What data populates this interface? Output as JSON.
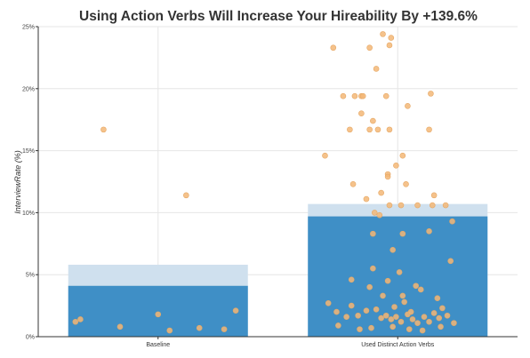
{
  "chart_data": {
    "type": "bar",
    "title": "Using Action Verbs Will Increase Your Hireability By +139.6%",
    "ylabel": "InterviewRate (%)",
    "xlabel": "",
    "ylim": [
      0,
      25
    ],
    "yticks": [
      0,
      5,
      10,
      15,
      20,
      25
    ],
    "ytick_labels": [
      "0%",
      "5%",
      "10%",
      "15%",
      "20%",
      "25%"
    ],
    "grid": true,
    "categories": [
      "Baseline",
      "Used Distinct Action Verbs"
    ],
    "values": [
      4.1,
      9.7
    ],
    "ci_upper": [
      5.8,
      10.7
    ],
    "points": [
      [
        [
          0.17,
          16.7
        ],
        [
          0.67,
          11.4
        ],
        [
          0.0,
          1.2
        ],
        [
          0.03,
          1.4
        ],
        [
          0.27,
          0.8
        ],
        [
          0.5,
          1.8
        ],
        [
          0.57,
          0.5
        ],
        [
          0.75,
          0.7
        ],
        [
          0.9,
          0.6
        ],
        [
          0.97,
          2.1
        ]
      ],
      [
        [
          0.41,
          24.4
        ],
        [
          0.46,
          24.1
        ],
        [
          0.45,
          23.5
        ],
        [
          0.11,
          23.3
        ],
        [
          0.33,
          23.3
        ],
        [
          0.37,
          21.6
        ],
        [
          0.17,
          19.4
        ],
        [
          0.24,
          19.4
        ],
        [
          0.28,
          19.4
        ],
        [
          0.29,
          19.4
        ],
        [
          0.43,
          19.4
        ],
        [
          0.7,
          19.6
        ],
        [
          0.56,
          18.6
        ],
        [
          0.28,
          18.0
        ],
        [
          0.35,
          17.4
        ],
        [
          0.21,
          16.7
        ],
        [
          0.33,
          16.7
        ],
        [
          0.38,
          16.7
        ],
        [
          0.45,
          16.7
        ],
        [
          0.69,
          16.7
        ],
        [
          0.06,
          14.6
        ],
        [
          0.53,
          14.6
        ],
        [
          0.49,
          13.8
        ],
        [
          0.44,
          13.1
        ],
        [
          0.44,
          12.9
        ],
        [
          0.23,
          12.3
        ],
        [
          0.55,
          12.3
        ],
        [
          0.4,
          11.6
        ],
        [
          0.31,
          11.1
        ],
        [
          0.72,
          11.4
        ],
        [
          0.45,
          10.6
        ],
        [
          0.36,
          10.0
        ],
        [
          0.39,
          9.8
        ],
        [
          0.52,
          10.6
        ],
        [
          0.62,
          10.6
        ],
        [
          0.71,
          10.6
        ],
        [
          0.79,
          10.6
        ],
        [
          0.35,
          8.3
        ],
        [
          0.53,
          8.3
        ],
        [
          0.69,
          8.5
        ],
        [
          0.83,
          9.3
        ],
        [
          0.82,
          6.1
        ],
        [
          0.47,
          7.0
        ],
        [
          0.35,
          5.5
        ],
        [
          0.51,
          5.2
        ],
        [
          0.22,
          4.6
        ],
        [
          0.33,
          4.0
        ],
        [
          0.44,
          4.5
        ],
        [
          0.61,
          4.1
        ],
        [
          0.64,
          3.8
        ],
        [
          0.41,
          3.3
        ],
        [
          0.53,
          3.3
        ],
        [
          0.54,
          2.8
        ],
        [
          0.74,
          3.1
        ],
        [
          0.08,
          2.7
        ],
        [
          0.13,
          2.0
        ],
        [
          0.19,
          1.6
        ],
        [
          0.26,
          1.7
        ],
        [
          0.31,
          2.1
        ],
        [
          0.37,
          2.2
        ],
        [
          0.4,
          1.5
        ],
        [
          0.43,
          1.7
        ],
        [
          0.46,
          1.4
        ],
        [
          0.49,
          1.6
        ],
        [
          0.52,
          1.2
        ],
        [
          0.56,
          1.8
        ],
        [
          0.59,
          1.4
        ],
        [
          0.62,
          1.1
        ],
        [
          0.66,
          1.6
        ],
        [
          0.69,
          1.2
        ],
        [
          0.72,
          1.9
        ],
        [
          0.75,
          1.5
        ],
        [
          0.77,
          2.3
        ],
        [
          0.8,
          1.7
        ],
        [
          0.84,
          1.1
        ],
        [
          0.14,
          0.9
        ],
        [
          0.27,
          0.6
        ],
        [
          0.34,
          0.7
        ],
        [
          0.47,
          0.8
        ],
        [
          0.57,
          0.6
        ],
        [
          0.65,
          0.5
        ],
        [
          0.76,
          0.8
        ],
        [
          0.22,
          2.5
        ],
        [
          0.48,
          2.4
        ],
        [
          0.58,
          2.0
        ]
      ]
    ]
  }
}
